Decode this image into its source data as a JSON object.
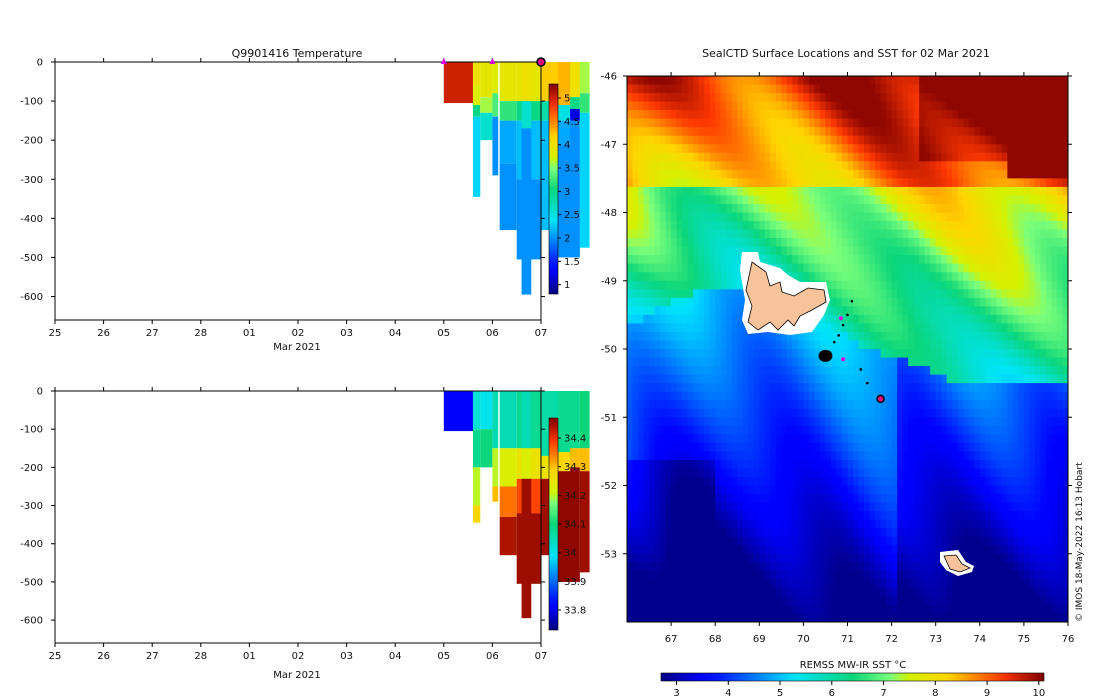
{
  "chart_data": [
    {
      "type": "heatmap",
      "title": "Q9901416  Temperature",
      "xlabel": "Mar 2021",
      "x_tick_labels": [
        "25",
        "26",
        "27",
        "28",
        "01",
        "02",
        "03",
        "04",
        "05",
        "06",
        "07"
      ],
      "y_tick_labels": [
        "0",
        "-100",
        "-200",
        "-300",
        "-400",
        "-500",
        "-600"
      ],
      "ylim": [
        -660,
        0
      ],
      "colorbar": {
        "ticks": [
          "1",
          "1.5",
          "2",
          "2.5",
          "3",
          "3.5",
          "4",
          "4.5",
          "5"
        ],
        "range": [
          0.8,
          5.3
        ]
      },
      "surface_markers_day": [
        8,
        9,
        10
      ],
      "profiles": [
        {
          "day": 8.0,
          "width": 0.6,
          "max_depth": 105,
          "layers": [
            [
              0,
              105,
              5.0
            ]
          ]
        },
        {
          "day": 8.6,
          "width": 0.15,
          "max_depth": 345,
          "layers": [
            [
              0,
              60,
              4.0
            ],
            [
              60,
              110,
              3.8
            ],
            [
              110,
              140,
              3.0
            ],
            [
              140,
              345,
              2.3
            ]
          ]
        },
        {
          "day": 8.75,
          "width": 0.25,
          "max_depth": 200,
          "layers": [
            [
              0,
              90,
              3.9
            ],
            [
              90,
              130,
              3.6
            ],
            [
              130,
              200,
              2.6
            ]
          ]
        },
        {
          "day": 9.0,
          "width": 0.12,
          "max_depth": 290,
          "layers": [
            [
              0,
              80,
              3.8
            ],
            [
              80,
              140,
              3.3
            ],
            [
              140,
              290,
              2.0
            ]
          ]
        },
        {
          "day": 9.15,
          "width": 0.35,
          "max_depth": 430,
          "layers": [
            [
              0,
              100,
              3.9
            ],
            [
              100,
              150,
              3.2
            ],
            [
              150,
              260,
              2.1
            ],
            [
              260,
              430,
              2.0
            ]
          ]
        },
        {
          "day": 9.5,
          "width": 0.5,
          "max_depth": 505,
          "layers": [
            [
              0,
              100,
              3.9
            ],
            [
              100,
              150,
              3.0
            ],
            [
              150,
              300,
              2.2
            ],
            [
              300,
              505,
              2.0
            ]
          ]
        },
        {
          "day": 9.6,
          "width": 0.2,
          "max_depth": 595,
          "layers": [
            [
              0,
              100,
              4.0
            ],
            [
              100,
              170,
              2.6
            ],
            [
              170,
              595,
              2.0
            ]
          ]
        },
        {
          "day": 10.0,
          "width": 0.35,
          "max_depth": 430,
          "layers": [
            [
              0,
              100,
              4.2
            ],
            [
              100,
              150,
              2.8
            ],
            [
              150,
              430,
              2.2
            ]
          ]
        },
        {
          "day": 10.35,
          "width": 0.3,
          "max_depth": 500,
          "layers": [
            [
              0,
              110,
              4.3
            ],
            [
              110,
              150,
              2.5
            ],
            [
              150,
              210,
              2.1
            ],
            [
              210,
              500,
              2.0
            ]
          ]
        },
        {
          "day": 10.6,
          "width": 0.2,
          "max_depth": 500,
          "layers": [
            [
              0,
              90,
              4.0
            ],
            [
              90,
              120,
              3.0
            ],
            [
              120,
              150,
              1.2
            ],
            [
              150,
              500,
              2.0
            ]
          ]
        },
        {
          "day": 10.8,
          "width": 0.2,
          "max_depth": 475,
          "layers": [
            [
              0,
              80,
              3.6
            ],
            [
              80,
              130,
              3.2
            ],
            [
              130,
              475,
              2.3
            ]
          ]
        }
      ]
    },
    {
      "type": "heatmap",
      "title": "",
      "xlabel": "Mar 2021",
      "x_tick_labels": [
        "25",
        "26",
        "27",
        "28",
        "01",
        "02",
        "03",
        "04",
        "05",
        "06",
        "07"
      ],
      "y_tick_labels": [
        "0",
        "-100",
        "-200",
        "-300",
        "-400",
        "-500",
        "-600"
      ],
      "ylim": [
        -660,
        0
      ],
      "colorbar": {
        "ticks": [
          "33.8",
          "33.9",
          "34",
          "34.1",
          "34.2",
          "34.3",
          "34.4"
        ],
        "range": [
          33.73,
          34.47
        ]
      },
      "profiles": [
        {
          "day": 8.0,
          "width": 0.6,
          "max_depth": 105,
          "layers": [
            [
              0,
              105,
              33.82
            ]
          ]
        },
        {
          "day": 8.6,
          "width": 0.15,
          "max_depth": 345,
          "layers": [
            [
              0,
              100,
              34.02
            ],
            [
              100,
              200,
              34.08
            ],
            [
              200,
              300,
              34.2
            ],
            [
              300,
              345,
              34.28
            ]
          ]
        },
        {
          "day": 8.75,
          "width": 0.25,
          "max_depth": 200,
          "layers": [
            [
              0,
              100,
              34.0
            ],
            [
              100,
              200,
              34.1
            ]
          ]
        },
        {
          "day": 9.0,
          "width": 0.12,
          "max_depth": 290,
          "layers": [
            [
              0,
              150,
              34.05
            ],
            [
              150,
              250,
              34.2
            ],
            [
              250,
              290,
              34.3
            ]
          ]
        },
        {
          "day": 9.15,
          "width": 0.35,
          "max_depth": 430,
          "layers": [
            [
              0,
              150,
              34.05
            ],
            [
              150,
              250,
              34.22
            ],
            [
              250,
              330,
              34.35
            ],
            [
              330,
              430,
              34.44
            ]
          ]
        },
        {
          "day": 9.5,
          "width": 0.5,
          "max_depth": 505,
          "layers": [
            [
              0,
              150,
              34.08
            ],
            [
              150,
              230,
              34.25
            ],
            [
              230,
              320,
              34.38
            ],
            [
              320,
              505,
              34.45
            ]
          ]
        },
        {
          "day": 9.6,
          "width": 0.2,
          "max_depth": 595,
          "layers": [
            [
              0,
              150,
              34.05
            ],
            [
              150,
              230,
              34.22
            ],
            [
              230,
              595,
              34.45
            ]
          ]
        },
        {
          "day": 10.0,
          "width": 0.35,
          "max_depth": 430,
          "layers": [
            [
              0,
              170,
              34.06
            ],
            [
              170,
              230,
              34.25
            ],
            [
              230,
              430,
              34.45
            ]
          ]
        },
        {
          "day": 10.35,
          "width": 0.3,
          "max_depth": 500,
          "layers": [
            [
              0,
              160,
              34.08
            ],
            [
              160,
              210,
              34.28
            ],
            [
              210,
              500,
              34.46
            ]
          ]
        },
        {
          "day": 10.6,
          "width": 0.2,
          "max_depth": 500,
          "layers": [
            [
              0,
              150,
              34.08
            ],
            [
              150,
              200,
              34.3
            ],
            [
              200,
              500,
              34.46
            ]
          ]
        },
        {
          "day": 10.8,
          "width": 0.2,
          "max_depth": 475,
          "layers": [
            [
              0,
              150,
              34.1
            ],
            [
              150,
              210,
              34.3
            ],
            [
              210,
              475,
              34.45
            ]
          ]
        }
      ]
    },
    {
      "type": "heatmap",
      "title": "SealCTD Surface Locations and SST for 02 Mar 2021",
      "x_tick_labels": [
        "67",
        "68",
        "69",
        "70",
        "71",
        "72",
        "73",
        "74",
        "75",
        "76"
      ],
      "y_tick_labels": [
        "-46",
        "-47",
        "-48",
        "-49",
        "-50",
        "-51",
        "-52",
        "-53"
      ],
      "xlim": [
        66,
        76
      ],
      "ylim": [
        -54,
        -46
      ],
      "colorbar_label": "REMSS MW-IR SST °C",
      "colorbar_ticks": [
        "3",
        "4",
        "5",
        "6",
        "7",
        "8",
        "9",
        "10"
      ],
      "colorbar_range": [
        2.7,
        10.1
      ],
      "seal_positions": [
        {
          "lon": 70.5,
          "lat": -50.1
        },
        {
          "lon": 70.6,
          "lat": -50.05
        },
        {
          "lon": 70.45,
          "lat": -50.15
        },
        {
          "lon": 70.7,
          "lat": -49.9
        },
        {
          "lon": 70.8,
          "lat": -49.8
        },
        {
          "lon": 70.9,
          "lat": -49.65
        },
        {
          "lon": 71.0,
          "lat": -49.5
        },
        {
          "lon": 71.1,
          "lat": -49.3
        },
        {
          "lon": 71.3,
          "lat": -50.3
        },
        {
          "lon": 71.45,
          "lat": -50.5
        }
      ],
      "latest_position": {
        "lon": 71.75,
        "lat": -50.73
      },
      "credit": "© IMOS 18-May-2022 16:13 Hobart"
    }
  ]
}
